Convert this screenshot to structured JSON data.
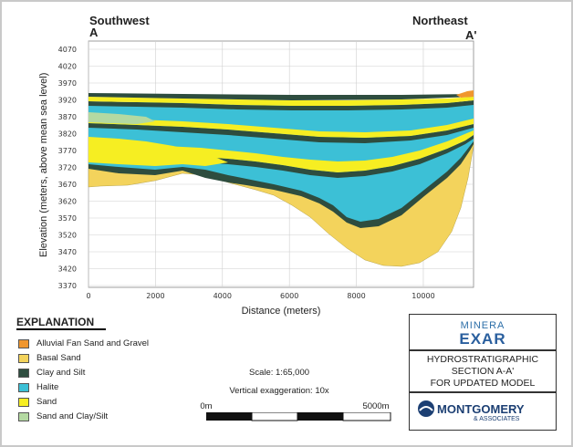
{
  "directions": {
    "left_name": "Southwest",
    "left_code": "A",
    "right_name": "Northeast",
    "right_code": "A'"
  },
  "axes": {
    "ylabel": "Elevation (meters, above mean sea level)",
    "xlabel": "Distance (meters)",
    "y_ticks": [
      "4070",
      "4020",
      "3970",
      "3920",
      "3870",
      "3820",
      "3770",
      "3720",
      "3670",
      "3620",
      "3570",
      "3520",
      "3470",
      "3420",
      "3370"
    ],
    "x_ticks": [
      "0",
      "2000",
      "4000",
      "6000",
      "8000",
      "10000"
    ],
    "y_range": [
      3370,
      4070
    ],
    "x_range": [
      0,
      11500
    ]
  },
  "explanation": {
    "title": "EXPLANATION",
    "items": [
      {
        "label": "Alluvial Fan Sand and Gravel",
        "color": "#f0962e"
      },
      {
        "label": "Basal Sand",
        "color": "#f3d35c"
      },
      {
        "label": "Clay and Silt",
        "color": "#2e4d3f"
      },
      {
        "label": "Halite",
        "color": "#3cc0d6"
      },
      {
        "label": "Sand",
        "color": "#f6ee22"
      },
      {
        "label": "Sand and Clay/Silt",
        "color": "#b4d9a2"
      }
    ]
  },
  "scale": {
    "scale_text": "Scale: 1:65,000",
    "exaggeration_text": "Vertical exaggeration: 10x",
    "bar_start": "0m",
    "bar_end": "5000m"
  },
  "title_block": {
    "brand_top": "MINERA",
    "brand_main": "EXAR",
    "line1": "HYDROSTRATIGRAPHIC",
    "line2": "SECTION A-A'",
    "line3": "FOR UPDATED MODEL",
    "company": "MONTGOMERY",
    "company_sub": "& ASSOCIATES"
  },
  "colors": {
    "basal_sand": "#f3d35c",
    "halite": "#3cc0d6",
    "sand": "#f6ee22",
    "clay_silt": "#2e4d3f",
    "sand_clay_silt": "#b4d9a2",
    "alluvial": "#f0962e",
    "grid": "#cfcfcf"
  }
}
